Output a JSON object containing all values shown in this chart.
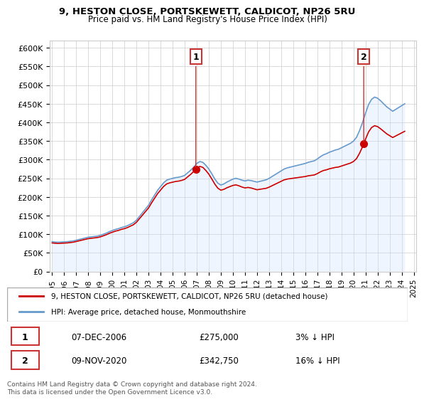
{
  "title_line1": "9, HESTON CLOSE, PORTSKEWETT, CALDICOT, NP26 5RU",
  "title_line2": "Price paid vs. HM Land Registry's House Price Index (HPI)",
  "ylabel": "",
  "xlabel": "",
  "property_color": "#cc0000",
  "hpi_color": "#6699cc",
  "hpi_fill_color": "#cce0ff",
  "background_color": "#ffffff",
  "grid_color": "#cccccc",
  "ylim": [
    0,
    620000
  ],
  "yticks": [
    0,
    50000,
    100000,
    150000,
    200000,
    250000,
    300000,
    350000,
    400000,
    450000,
    500000,
    550000,
    600000
  ],
  "ytick_labels": [
    "£0",
    "£50K",
    "£100K",
    "£150K",
    "£200K",
    "£250K",
    "£300K",
    "£350K",
    "£400K",
    "£450K",
    "£500K",
    "£550K",
    "£600K"
  ],
  "marker1_year": 2006.92,
  "marker1_value": 275000,
  "marker1_label": "1",
  "marker1_date": "07-DEC-2006",
  "marker1_price": "£275,000",
  "marker1_hpi": "3% ↓ HPI",
  "marker2_year": 2020.85,
  "marker2_value": 342750,
  "marker2_label": "2",
  "marker2_date": "09-NOV-2020",
  "marker2_price": "£342,750",
  "marker2_hpi": "16% ↓ HPI",
  "legend_property": "9, HESTON CLOSE, PORTSKEWETT, CALDICOT, NP26 5RU (detached house)",
  "legend_hpi": "HPI: Average price, detached house, Monmouthshire",
  "footer": "Contains HM Land Registry data © Crown copyright and database right 2024.\nThis data is licensed under the Open Government Licence v3.0.",
  "hpi_years": [
    1995.0,
    1995.25,
    1995.5,
    1995.75,
    1996.0,
    1996.25,
    1996.5,
    1996.75,
    1997.0,
    1997.25,
    1997.5,
    1997.75,
    1998.0,
    1998.25,
    1998.5,
    1998.75,
    1999.0,
    1999.25,
    1999.5,
    1999.75,
    2000.0,
    2000.25,
    2000.5,
    2000.75,
    2001.0,
    2001.25,
    2001.5,
    2001.75,
    2002.0,
    2002.25,
    2002.5,
    2002.75,
    2003.0,
    2003.25,
    2003.5,
    2003.75,
    2004.0,
    2004.25,
    2004.5,
    2004.75,
    2005.0,
    2005.25,
    2005.5,
    2005.75,
    2006.0,
    2006.25,
    2006.5,
    2006.75,
    2007.0,
    2007.25,
    2007.5,
    2007.75,
    2008.0,
    2008.25,
    2008.5,
    2008.75,
    2009.0,
    2009.25,
    2009.5,
    2009.75,
    2010.0,
    2010.25,
    2010.5,
    2010.75,
    2011.0,
    2011.25,
    2011.5,
    2011.75,
    2012.0,
    2012.25,
    2012.5,
    2012.75,
    2013.0,
    2013.25,
    2013.5,
    2013.75,
    2014.0,
    2014.25,
    2014.5,
    2014.75,
    2015.0,
    2015.25,
    2015.5,
    2015.75,
    2016.0,
    2016.25,
    2016.5,
    2016.75,
    2017.0,
    2017.25,
    2017.5,
    2017.75,
    2018.0,
    2018.25,
    2018.5,
    2018.75,
    2019.0,
    2019.25,
    2019.5,
    2019.75,
    2020.0,
    2020.25,
    2020.5,
    2020.75,
    2021.0,
    2021.25,
    2021.5,
    2021.75,
    2022.0,
    2022.25,
    2022.5,
    2022.75,
    2023.0,
    2023.25,
    2023.5,
    2023.75,
    2024.0,
    2024.25
  ],
  "hpi_values": [
    80000,
    79000,
    78500,
    79000,
    79500,
    80000,
    81000,
    82000,
    84000,
    86000,
    88000,
    90000,
    92000,
    93000,
    94000,
    95000,
    97000,
    100000,
    103000,
    107000,
    110000,
    113000,
    115000,
    118000,
    120000,
    123000,
    127000,
    131000,
    138000,
    148000,
    158000,
    168000,
    178000,
    192000,
    205000,
    218000,
    228000,
    238000,
    245000,
    248000,
    250000,
    252000,
    253000,
    255000,
    258000,
    265000,
    272000,
    280000,
    290000,
    295000,
    293000,
    285000,
    275000,
    262000,
    248000,
    237000,
    232000,
    235000,
    240000,
    244000,
    248000,
    250000,
    248000,
    245000,
    243000,
    245000,
    244000,
    242000,
    240000,
    242000,
    244000,
    246000,
    250000,
    255000,
    260000,
    265000,
    270000,
    275000,
    278000,
    280000,
    282000,
    284000,
    286000,
    288000,
    290000,
    293000,
    295000,
    297000,
    302000,
    308000,
    313000,
    316000,
    320000,
    323000,
    326000,
    328000,
    332000,
    336000,
    340000,
    344000,
    350000,
    360000,
    378000,
    400000,
    425000,
    448000,
    462000,
    468000,
    465000,
    458000,
    450000,
    442000,
    436000,
    430000,
    435000,
    440000,
    445000,
    450000
  ],
  "property_years": [
    2006.92,
    2020.85
  ],
  "property_values": [
    275000,
    342750
  ],
  "xtick_years": [
    1995,
    1996,
    1997,
    1998,
    1999,
    2000,
    2001,
    2002,
    2003,
    2004,
    2005,
    2006,
    2007,
    2008,
    2009,
    2010,
    2011,
    2012,
    2013,
    2014,
    2015,
    2016,
    2017,
    2018,
    2019,
    2020,
    2021,
    2022,
    2023,
    2024,
    2025
  ]
}
